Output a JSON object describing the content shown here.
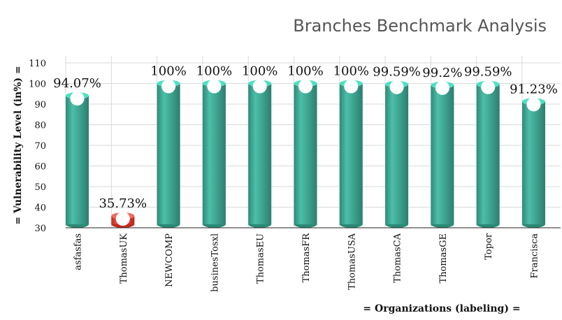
{
  "chart_data": {
    "type": "bar",
    "title": "Branches Benchmark Analysis",
    "xlabel": "= Organizations (labeling) =",
    "ylabel": "= Vulnerability Level (in%) =",
    "ylim": [
      30,
      110
    ],
    "yticks": [
      30,
      40,
      50,
      60,
      70,
      80,
      90,
      100,
      110
    ],
    "grid": true,
    "categories": [
      "asfasfas",
      "ThomasUK",
      "NEWCOMP",
      "businesTosxl",
      "ThomasEU",
      "ThomasFR",
      "ThomasUSA",
      "ThomasCA",
      "ThomasGE",
      "Topor",
      "Francisca"
    ],
    "values": [
      94.07,
      35.73,
      100,
      100,
      100,
      100,
      100,
      99.59,
      99.2,
      99.59,
      91.23
    ],
    "data_labels": [
      "94.07%",
      "35.73%",
      "100%",
      "100%",
      "100%",
      "100%",
      "100%",
      "99.59%",
      "99.2%",
      "99.59%",
      "91.23%"
    ],
    "colors": {
      "bar": "#3a9a88",
      "bar_highlight": "#e03a2f",
      "bar_top": "#4ee0c4",
      "bar_top_highlight": "#f06a5e",
      "marker": "#ffffff"
    },
    "highlight_index": 1
  }
}
